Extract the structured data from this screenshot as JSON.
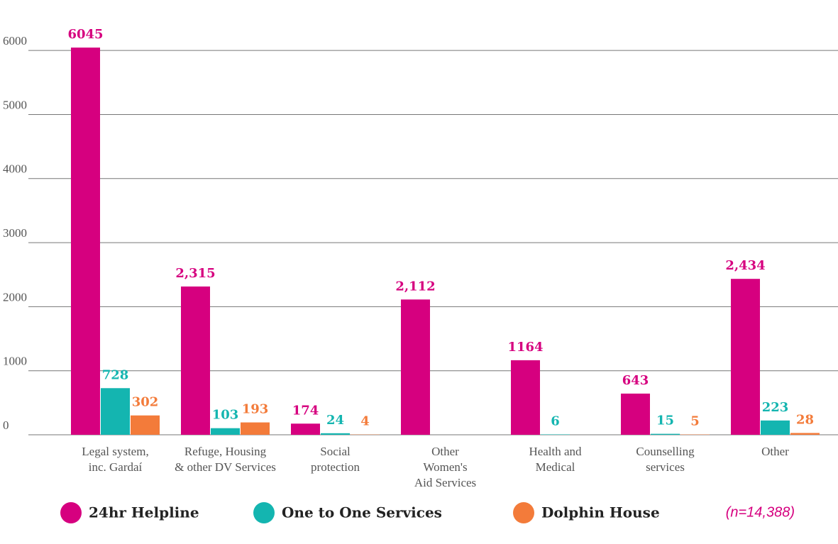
{
  "chart_data": {
    "type": "bar",
    "categories": [
      "Legal system,\ninc. Gardaí",
      "Refuge, Housing\n& other DV Services",
      "Social\nprotection",
      "Other\nWomen's\nAid Services",
      "Health and\nMedical",
      "Counselling\nservices",
      "Other"
    ],
    "series": [
      {
        "name": "24hr Helpline",
        "color": "#d6007f",
        "values": [
          6045,
          2315,
          174,
          2112,
          1164,
          643,
          2434
        ],
        "value_labels": [
          "6045",
          "2,315",
          "174",
          "2,112",
          "1164",
          "643",
          "2,434"
        ]
      },
      {
        "name": "One to One Services",
        "color": "#14b5b0",
        "values": [
          728,
          103,
          24,
          null,
          6,
          15,
          223
        ],
        "value_labels": [
          "728",
          "103",
          "24",
          null,
          "6",
          "15",
          "223"
        ]
      },
      {
        "name": "Dolphin House",
        "color": "#f37b3a",
        "values": [
          302,
          193,
          4,
          null,
          null,
          5,
          28
        ],
        "value_labels": [
          "302",
          "193",
          "4",
          null,
          null,
          "5",
          "28"
        ]
      }
    ],
    "ylim": [
      0,
      6500
    ],
    "yticks": [
      0,
      1000,
      2000,
      3000,
      4000,
      5000,
      6000
    ],
    "grid": true,
    "annotation": "(n=14,388)",
    "legend": "bottom"
  }
}
